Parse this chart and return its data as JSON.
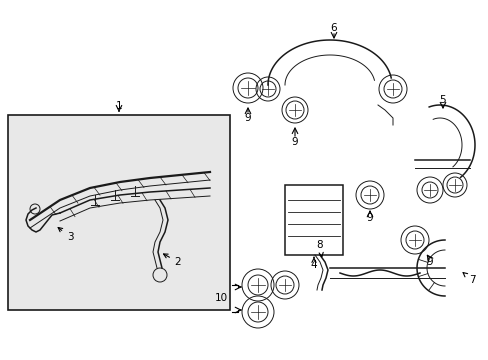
{
  "background_color": "#ffffff",
  "line_color": "#1a1a1a",
  "label_color": "#000000",
  "box_fill": "#e8e8e8",
  "fig_width": 4.89,
  "fig_height": 3.6,
  "dpi": 100,
  "font_size": 7.5,
  "lw_thin": 0.7,
  "lw_med": 1.1,
  "lw_thick": 1.6
}
